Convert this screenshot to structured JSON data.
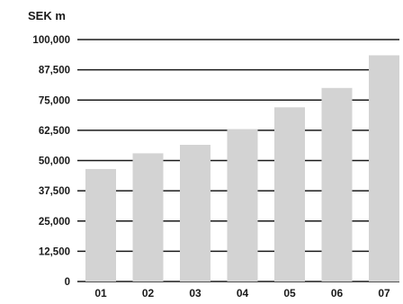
{
  "chart_data": {
    "type": "bar",
    "unit_label": "SEK m",
    "categories": [
      "01",
      "02",
      "03",
      "04",
      "05",
      "06",
      "07"
    ],
    "values": [
      46500,
      53000,
      56500,
      63000,
      72000,
      80000,
      93500
    ],
    "y_ticks": [
      {
        "value": 0,
        "label": "0"
      },
      {
        "value": 12500,
        "label": "12,500"
      },
      {
        "value": 25000,
        "label": "25,000"
      },
      {
        "value": 37500,
        "label": "37,500"
      },
      {
        "value": 50000,
        "label": "50,000"
      },
      {
        "value": 62500,
        "label": "62,500"
      },
      {
        "value": 75000,
        "label": "75,000"
      },
      {
        "value": 87500,
        "label": "87,500"
      },
      {
        "value": 100000,
        "label": "100,000"
      }
    ],
    "ylim": [
      0,
      100000
    ],
    "grid": true,
    "title": "",
    "xlabel": "",
    "ylabel": "",
    "colors": {
      "bar": "#d3d3d3",
      "grid": "#1a1a1a",
      "text": "#1a1a1a"
    }
  }
}
